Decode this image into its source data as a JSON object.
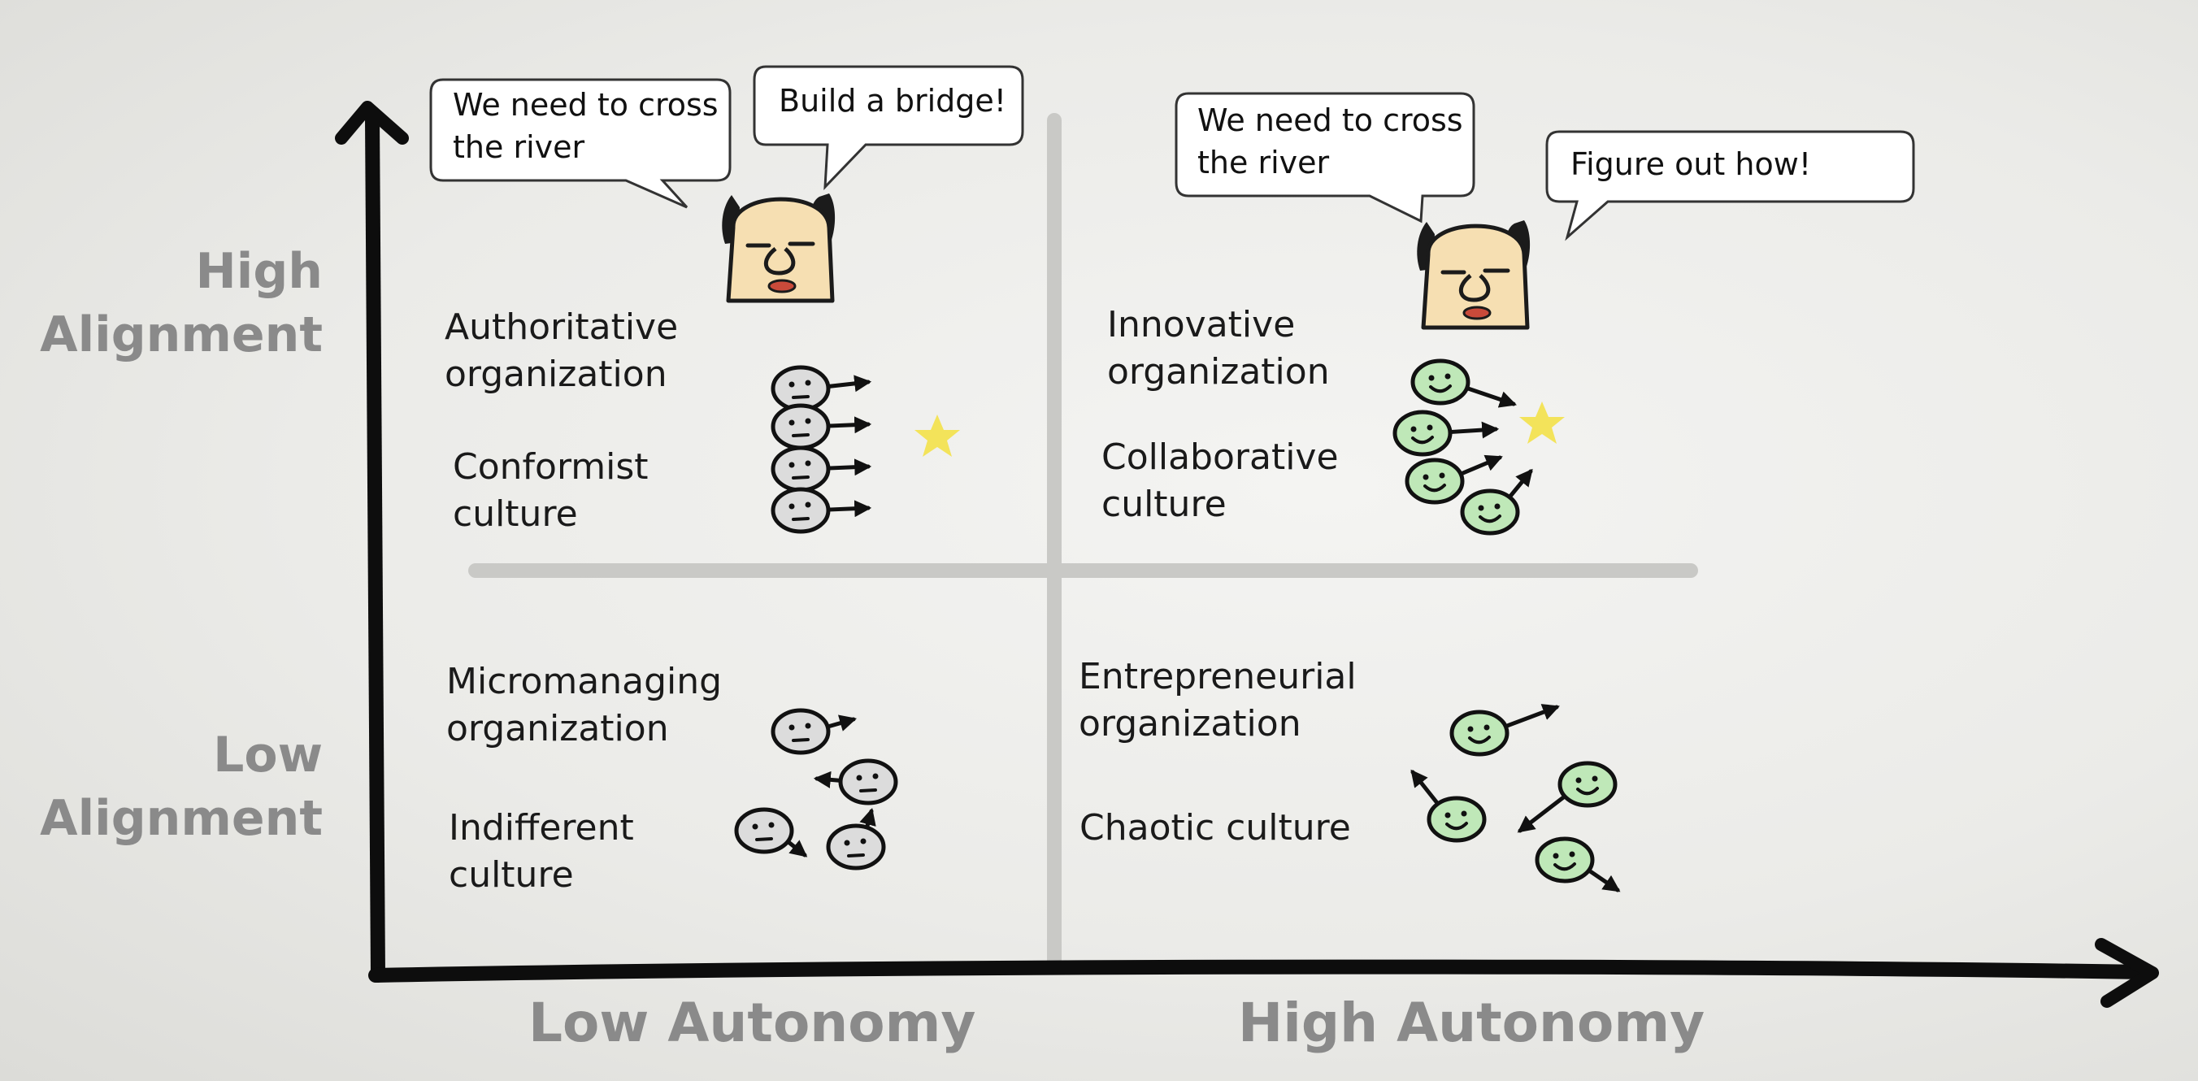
{
  "axes": {
    "y_high": "High\nAlignment",
    "y_low": "Low\nAlignment",
    "x_low": "Low Autonomy",
    "x_high": "High Autonomy"
  },
  "quadrants": {
    "top_left": {
      "organization": "Authoritative\norganization",
      "culture": "Conformist\nculture"
    },
    "top_right": {
      "organization": "Innovative\norganization",
      "culture": "Collaborative\nculture"
    },
    "bottom_left": {
      "organization": "Micromanaging\norganization",
      "culture": "Indifferent\nculture"
    },
    "bottom_right": {
      "organization": "Entrepreneurial\norganization",
      "culture": "Chaotic culture"
    }
  },
  "bubbles": {
    "left_goal": "We need to cross\nthe river",
    "left_command": "Build a bridge!",
    "right_goal": "We need to cross\nthe river",
    "right_command": "Figure out how!"
  },
  "colors": {
    "axis": "#0d0d0d",
    "divider": "#c9c9c6",
    "label_gray": "#8a8a8a",
    "face_gray": "#dcdcdc",
    "face_green": "#bfe8b8",
    "star": "#f3e35a",
    "boss_skin": "#f6dfb2"
  },
  "icons": [
    "boss-icon",
    "gray-face-icon",
    "green-face-icon",
    "star-icon",
    "arrow-icon"
  ]
}
